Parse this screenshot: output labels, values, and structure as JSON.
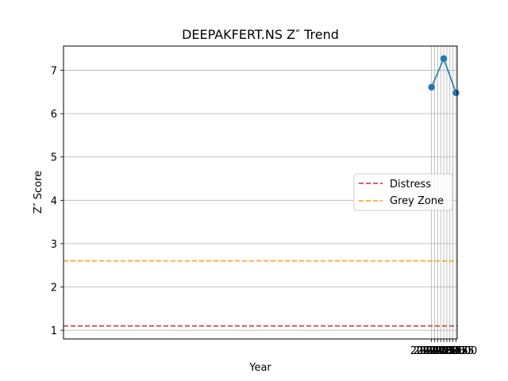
{
  "chart_data": {
    "type": "line",
    "title": "DEEPAKFERT.NS Z″ Trend",
    "xlabel": "Year",
    "ylabel": "Z″ Score",
    "xlim": [
      1991.9,
      2024.1
    ],
    "ylim": [
      0.8,
      7.56
    ],
    "xticks": [
      2022.0,
      2022.25,
      2022.5,
      2022.75,
      2023.0,
      2023.25,
      2023.5,
      2023.75,
      2024.0
    ],
    "xtick_labels": [
      "2022.00",
      "2022.25",
      "2022.50",
      "2022.75",
      "2023.00",
      "2023.25",
      "2023.50",
      "2023.75",
      "2024.00"
    ],
    "yticks": [
      1,
      2,
      3,
      4,
      5,
      6,
      7
    ],
    "ytick_labels": [
      "1",
      "2",
      "3",
      "4",
      "5",
      "6",
      "7"
    ],
    "grid": true,
    "legend_placement": "center-right",
    "series": [
      {
        "x": [
          2022,
          2023,
          2024
        ],
        "values": [
          6.61,
          7.27,
          6.48
        ],
        "color": "#1f77b4",
        "style": "solid",
        "marker": "circle"
      }
    ],
    "reference_lines": [
      {
        "name": "Distress",
        "y": 1.1,
        "color": "#d62728",
        "style": "dashed"
      },
      {
        "name": "Grey Zone",
        "y": 2.6,
        "color": "#ff9f1a",
        "style": "dashed"
      }
    ]
  }
}
